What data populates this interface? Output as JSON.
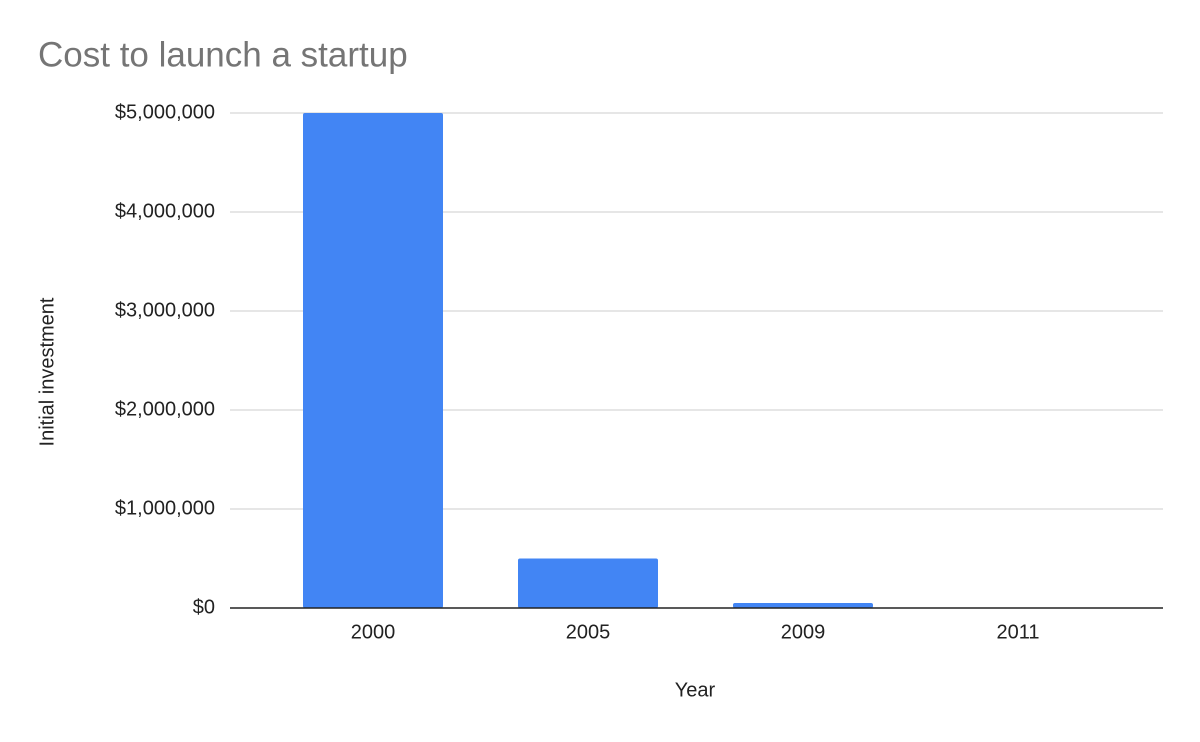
{
  "chart_data": {
    "type": "bar",
    "title": "Cost to launch a startup",
    "x_label": "Year",
    "y_label": "Initial investment",
    "categories": [
      "2000",
      "2005",
      "2009",
      "2011"
    ],
    "values": [
      5000000,
      500000,
      50000,
      5000
    ],
    "color": "#4285f4",
    "ylim": [
      0,
      5000000
    ],
    "yticks": [
      {
        "value": 0,
        "label": "$0"
      },
      {
        "value": 1000000,
        "label": "$1,000,000"
      },
      {
        "value": 2000000,
        "label": "$2,000,000"
      },
      {
        "value": 3000000,
        "label": "$3,000,000"
      },
      {
        "value": 4000000,
        "label": "$4,000,000"
      },
      {
        "value": 5000000,
        "label": "$5,000,000"
      }
    ],
    "grid": true
  }
}
